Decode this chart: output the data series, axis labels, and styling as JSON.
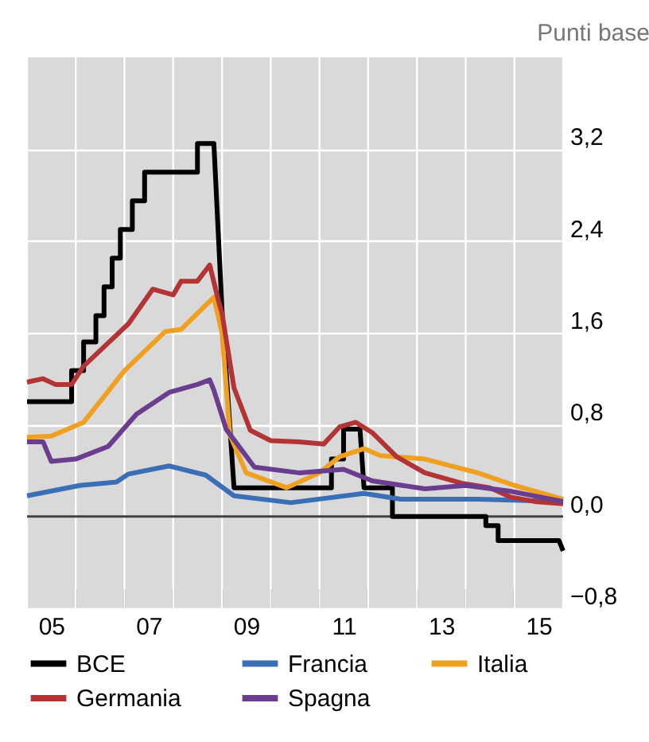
{
  "chart_data": {
    "type": "line",
    "ylabel": "Punti base",
    "xlim": [
      "2005-01",
      "2016-01"
    ],
    "ylim": [
      -0.8,
      4.0
    ],
    "xticks": [
      {
        "value": "2005-01",
        "label": null
      },
      {
        "value": "2005-07",
        "label": "05"
      },
      {
        "value": "2006-01",
        "label": null
      },
      {
        "value": "2007-01",
        "label": null
      },
      {
        "value": "2007-07",
        "label": "07"
      },
      {
        "value": "2008-01",
        "label": null
      },
      {
        "value": "2009-01",
        "label": null
      },
      {
        "value": "2009-07",
        "label": "09"
      },
      {
        "value": "2010-01",
        "label": null
      },
      {
        "value": "2011-01",
        "label": null
      },
      {
        "value": "2011-07",
        "label": "11"
      },
      {
        "value": "2012-01",
        "label": null
      },
      {
        "value": "2013-01",
        "label": null
      },
      {
        "value": "2013-07",
        "label": "13"
      },
      {
        "value": "2014-01",
        "label": null
      },
      {
        "value": "2015-01",
        "label": null
      },
      {
        "value": "2015-07",
        "label": "15"
      },
      {
        "value": "2016-01",
        "label": null
      }
    ],
    "yticks": [
      {
        "value": -0.8,
        "label": "−0,8"
      },
      {
        "value": 0,
        "label": "0,0"
      },
      {
        "value": 0.8,
        "label": "0,8"
      },
      {
        "value": 1.6,
        "label": "1,6"
      },
      {
        "value": 2.4,
        "label": "2,4"
      },
      {
        "value": 3.2,
        "label": "3,2"
      }
    ],
    "grid": true,
    "legend": "bottom",
    "marker": "none",
    "line_style": "solid",
    "ref_lines": [
      {
        "axis": "y",
        "value": 0,
        "label": null,
        "color": "#404040"
      }
    ],
    "series": [
      {
        "name": "BCE",
        "color": "#000000",
        "x": [
          "2005-01",
          "2005-12",
          "2005-12",
          "2006-03",
          "2006-03",
          "2006-06",
          "2006-06",
          "2006-08",
          "2006-08",
          "2006-10",
          "2006-10",
          "2006-12",
          "2006-12",
          "2007-03",
          "2007-03",
          "2007-06",
          "2007-06",
          "2008-07",
          "2008-07",
          "2008-11",
          "2009-01",
          "2009-04",
          "2011-04",
          "2011-04",
          "2011-07",
          "2011-07",
          "2011-11",
          "2011-12",
          "2012-07",
          "2012-07",
          "2014-06",
          "2014-06",
          "2014-09",
          "2014-09",
          "2015-12",
          "2016-01"
        ],
        "values": [
          1.0,
          1.0,
          1.27,
          1.27,
          1.52,
          1.52,
          1.75,
          1.75,
          2.0,
          2.0,
          2.25,
          2.25,
          2.5,
          2.5,
          2.75,
          2.75,
          3.0,
          3.0,
          3.25,
          3.25,
          1.8,
          0.25,
          0.25,
          0.5,
          0.5,
          0.76,
          0.76,
          0.25,
          0.25,
          0.0,
          0.0,
          -0.08,
          -0.08,
          -0.21,
          -0.21,
          -0.3
        ]
      },
      {
        "name": "Francia",
        "color": "#3a6fb5",
        "x": [
          "2005-01",
          "2006-02",
          "2006-11",
          "2007-02",
          "2007-12",
          "2008-09",
          "2009-04",
          "2010-06",
          "2011-12",
          "2012-09",
          "2014-04",
          "2016-01"
        ],
        "values": [
          0.18,
          0.27,
          0.3,
          0.37,
          0.44,
          0.36,
          0.18,
          0.12,
          0.2,
          0.15,
          0.15,
          0.13
        ]
      },
      {
        "name": "Italia",
        "color": "#f0a020",
        "x": [
          "2005-01",
          "2005-07",
          "2006-03",
          "2007-01",
          "2007-11",
          "2008-03",
          "2008-11",
          "2009-01",
          "2009-03",
          "2009-07",
          "2010-05",
          "2011-01",
          "2011-06",
          "2011-12",
          "2012-04",
          "2013-03",
          "2014-04",
          "2015-01",
          "2016-01"
        ],
        "values": [
          0.69,
          0.7,
          0.82,
          1.27,
          1.61,
          1.63,
          1.91,
          1.6,
          0.71,
          0.38,
          0.25,
          0.38,
          0.52,
          0.59,
          0.53,
          0.5,
          0.38,
          0.27,
          0.15
        ]
      },
      {
        "name": "Germania",
        "color": "#b23434",
        "x": [
          "2005-01",
          "2005-05",
          "2005-08",
          "2005-12",
          "2006-03",
          "2007-02",
          "2007-08",
          "2008-01",
          "2008-03",
          "2008-07",
          "2008-10",
          "2008-12",
          "2009-01",
          "2009-04",
          "2009-08",
          "2010-01",
          "2010-08",
          "2011-02",
          "2011-06",
          "2011-10",
          "2012-02",
          "2012-08",
          "2013-03",
          "2013-12",
          "2014-07",
          "2014-12",
          "2015-06",
          "2016-01"
        ],
        "values": [
          1.17,
          1.2,
          1.15,
          1.15,
          1.31,
          1.68,
          1.98,
          1.93,
          2.05,
          2.05,
          2.19,
          1.9,
          1.77,
          1.12,
          0.75,
          0.66,
          0.65,
          0.63,
          0.78,
          0.82,
          0.73,
          0.52,
          0.38,
          0.29,
          0.25,
          0.17,
          0.13,
          0.11
        ]
      },
      {
        "name": "Spagna",
        "color": "#6a3d8f",
        "x": [
          "2005-01",
          "2005-05",
          "2005-07",
          "2006-01",
          "2006-09",
          "2007-04",
          "2007-12",
          "2008-07",
          "2008-10",
          "2008-11",
          "2009-02",
          "2009-09",
          "2010-08",
          "2011-07",
          "2012-02",
          "2013-03",
          "2014-01",
          "2014-12",
          "2016-01"
        ],
        "values": [
          0.65,
          0.65,
          0.48,
          0.5,
          0.61,
          0.89,
          1.08,
          1.15,
          1.19,
          1.1,
          0.76,
          0.43,
          0.38,
          0.41,
          0.31,
          0.24,
          0.27,
          0.22,
          0.13
        ]
      }
    ]
  }
}
